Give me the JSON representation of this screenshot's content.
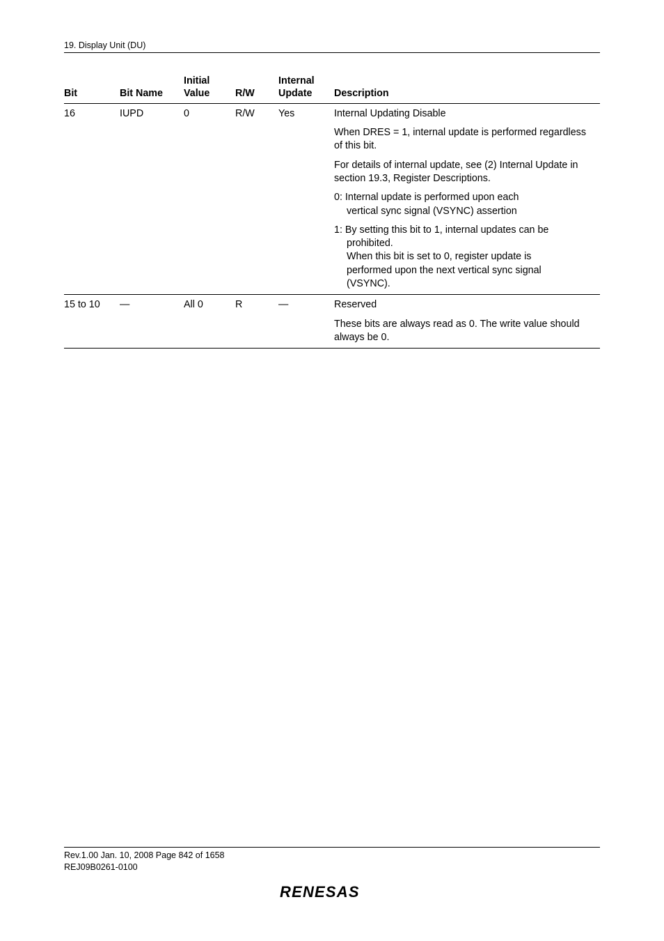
{
  "header": {
    "section": "19.   Display Unit (DU)"
  },
  "table": {
    "columns": {
      "bit": "Bit",
      "bit_name": "Bit Name",
      "initial_value_l1": "Initial",
      "initial_value_l2": "Value",
      "rw": "R/W",
      "internal_update_l1": "Internal",
      "internal_update_l2": "Update",
      "description": "Description"
    },
    "rows": [
      {
        "bit": "16",
        "bit_name": "IUPD",
        "initial_value": "0",
        "rw": "R/W",
        "internal_update": "Yes",
        "desc": {
          "p1": "Internal Updating Disable",
          "p2": "When DRES = 1, internal update is performed regardless of this bit.",
          "p3": "For details of internal update, see (2) Internal Update in section 19.3, Register Descriptions.",
          "p4_l1": "0: Internal update is performed upon each",
          "p4_l2": "vertical sync signal (VSYNC) assertion",
          "p5_l1": "1: By setting this bit to 1, internal updates can be",
          "p5_l2": "prohibited.",
          "p5_l3": "When this bit is set to 0, register update is",
          "p5_l4": "performed upon the next vertical sync signal",
          "p5_l5": "(VSYNC)."
        }
      },
      {
        "bit": "15 to 10",
        "bit_name": "—",
        "initial_value": "All 0",
        "rw": "R",
        "internal_update": "—",
        "desc": {
          "p1": "Reserved",
          "p2": "These bits are always read as 0. The write value should always be 0."
        }
      }
    ]
  },
  "footer": {
    "line1": "Rev.1.00  Jan. 10, 2008  Page 842 of 1658",
    "line2": "REJ09B0261-0100",
    "logo_text": "RENESAS"
  }
}
